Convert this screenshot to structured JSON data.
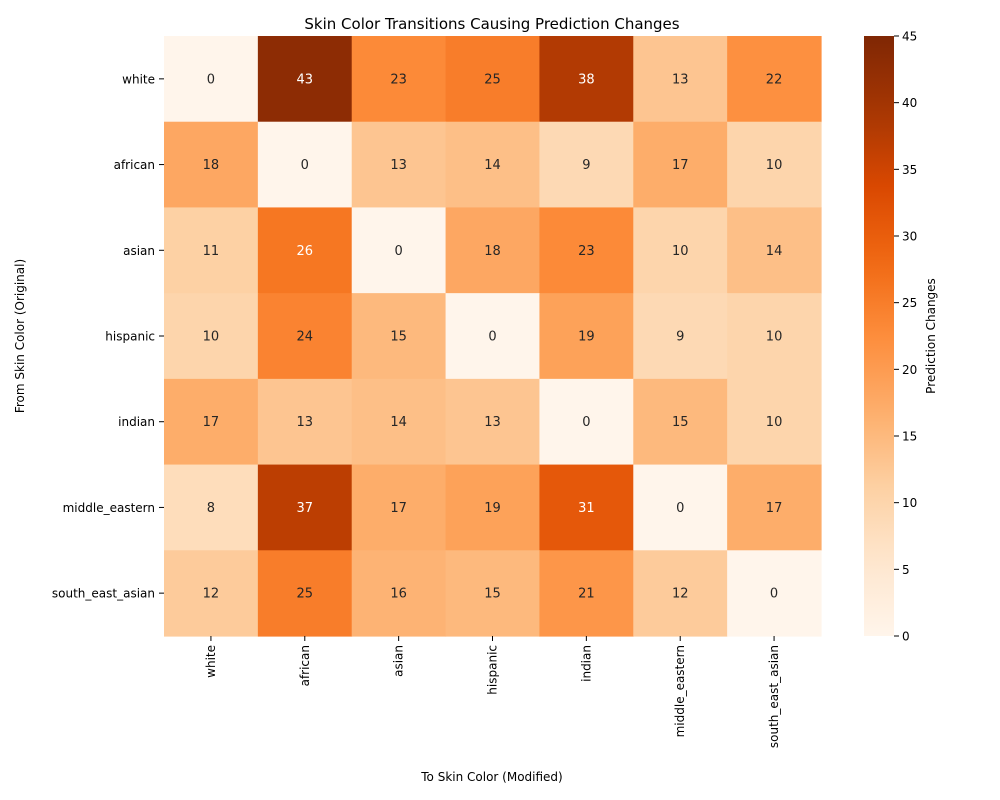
{
  "chart_data": {
    "type": "heatmap",
    "title": "Skin Color Transitions Causing Prediction Changes",
    "xlabel": "To Skin Color (Modified)",
    "ylabel": "From Skin Color (Original)",
    "colorbar_label": "Prediction Changes",
    "x_categories": [
      "white",
      "african",
      "asian",
      "hispanic",
      "indian",
      "middle_eastern",
      "south_east_asian"
    ],
    "y_categories": [
      "white",
      "african",
      "asian",
      "hispanic",
      "indian",
      "middle_eastern",
      "south_east_asian"
    ],
    "values": [
      [
        0,
        43,
        23,
        25,
        38,
        13,
        22
      ],
      [
        18,
        0,
        13,
        14,
        9,
        17,
        10
      ],
      [
        11,
        26,
        0,
        18,
        23,
        10,
        14
      ],
      [
        10,
        24,
        15,
        0,
        19,
        9,
        10
      ],
      [
        17,
        13,
        14,
        13,
        0,
        15,
        10
      ],
      [
        8,
        37,
        17,
        19,
        31,
        0,
        17
      ],
      [
        12,
        25,
        16,
        15,
        21,
        12,
        0
      ]
    ],
    "color_range": [
      0,
      45
    ],
    "colorbar_ticks": [
      0,
      5,
      10,
      15,
      20,
      25,
      30,
      35,
      40,
      45
    ],
    "colormap": "Oranges"
  }
}
